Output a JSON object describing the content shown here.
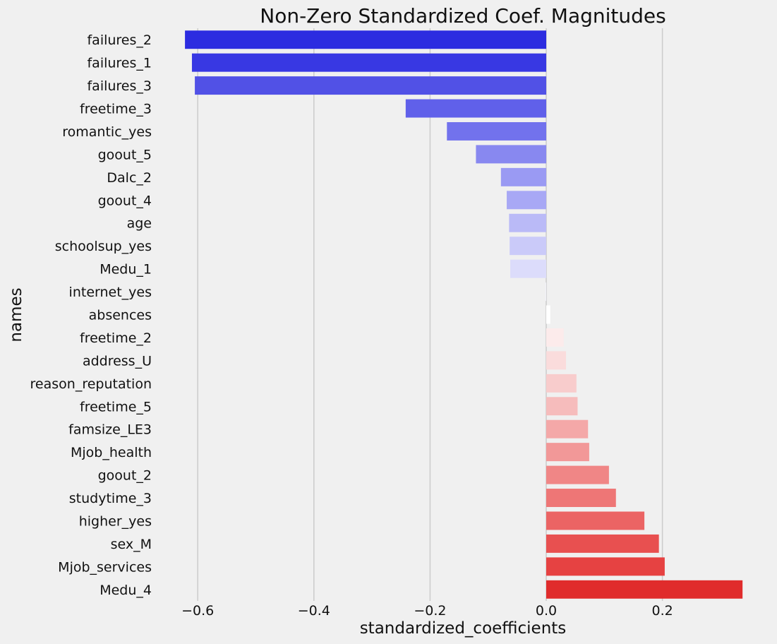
{
  "chart_data": {
    "type": "bar",
    "orientation": "horizontal",
    "title": "Non-Zero Standardized Coef. Magnitudes",
    "xlabel": "standardized_coefficients",
    "ylabel": "names",
    "xlim": [
      -0.67,
      0.34
    ],
    "xticks": [
      -0.6,
      -0.4,
      -0.2,
      0.0,
      0.2
    ],
    "xtick_labels": [
      "−0.6",
      "−0.4",
      "−0.2",
      "0.0",
      "0.2"
    ],
    "grid": "vertical",
    "palette": "bwr diverging (blue to white to red)",
    "categories": [
      "failures_2",
      "failures_1",
      "failures_3",
      "freetime_3",
      "romantic_yes",
      "goout_5",
      "Dalc_2",
      "goout_4",
      "age",
      "schoolsup_yes",
      "Medu_1",
      "internet_yes",
      "absences",
      "freetime_2",
      "address_U",
      "reason_reputation",
      "freetime_5",
      "famsize_LE3",
      "Mjob_health",
      "goout_2",
      "studytime_3",
      "higher_yes",
      "sex_M",
      "Mjob_services",
      "Medu_4"
    ],
    "values": [
      -0.622,
      -0.61,
      -0.605,
      -0.242,
      -0.171,
      -0.121,
      -0.078,
      -0.068,
      -0.064,
      -0.063,
      -0.062,
      -0.001,
      0.007,
      0.03,
      0.034,
      0.052,
      0.054,
      0.072,
      0.074,
      0.108,
      0.12,
      0.169,
      0.194,
      0.204,
      0.338
    ],
    "colors": [
      "#2c2ce0",
      "#3838e3",
      "#5151e6",
      "#6060ea",
      "#7272ed",
      "#8888f0",
      "#9a9af3",
      "#a8a8f5",
      "#babaf7",
      "#cacaf9",
      "#dcdcfb",
      "#f4f4fe",
      "#ffffff",
      "#fcebeb",
      "#fadcdc",
      "#f8cccc",
      "#f6bcbc",
      "#f4a8a8",
      "#f29898",
      "#f08686",
      "#ee7676",
      "#eb6464",
      "#e85050",
      "#e64242",
      "#e02c2c"
    ]
  }
}
